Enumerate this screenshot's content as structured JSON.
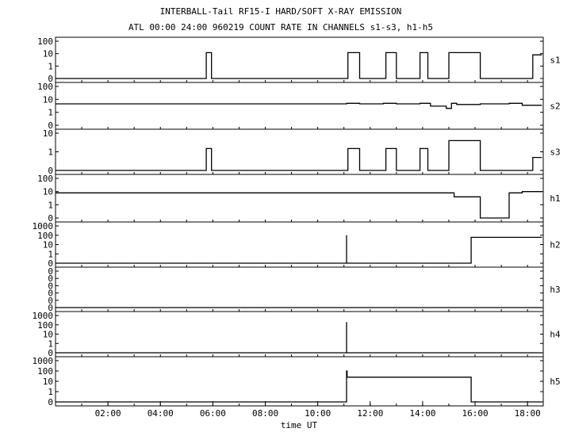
{
  "chart_data": {
    "type": "line",
    "title": "INTERBALL-Tail RF15-I HARD/SOFT X-RAY EMISSION",
    "subtitle": "ATL 00:00 24:00 960219  COUNT RATE IN CHANNELS s1-s3, h1-h5",
    "xlabel": "time UT",
    "xlim": [
      0,
      18.6
    ],
    "x_ticks": [
      2,
      4,
      6,
      8,
      10,
      12,
      14,
      16,
      18
    ],
    "x_tick_labels": [
      "02:00",
      "04:00",
      "06:00",
      "08:00",
      "10:00",
      "12:00",
      "14:00",
      "16:00",
      "18:00"
    ],
    "y_scale": "log",
    "grid": false,
    "panels": [
      {
        "name": "s1",
        "y_tick_labels": [
          "100",
          "10",
          "1",
          "0"
        ],
        "series": {
          "x": [
            0,
            5.75,
            5.75,
            5.95,
            5.95,
            11.15,
            11.15,
            11.6,
            11.6,
            12.6,
            12.6,
            13.0,
            13.0,
            13.9,
            13.9,
            14.2,
            14.2,
            15.0,
            15.0,
            16.2,
            16.2,
            18.2,
            18.2,
            18.55
          ],
          "y": [
            0,
            0,
            12,
            12,
            0,
            0,
            12,
            12,
            0,
            0,
            12,
            12,
            0,
            0,
            12,
            12,
            0,
            0,
            12,
            12,
            0,
            0,
            8,
            8
          ]
        }
      },
      {
        "name": "s2",
        "y_tick_labels": [
          "100",
          "10",
          "1",
          "0"
        ],
        "series": {
          "x": [
            0,
            11.1,
            11.1,
            11.6,
            11.6,
            12.5,
            12.5,
            13.0,
            13.0,
            13.9,
            13.9,
            14.3,
            14.3,
            14.9,
            14.9,
            15.1,
            15.1,
            15.3,
            15.3,
            16.2,
            16.2,
            17.3,
            17.3,
            17.8,
            17.8,
            18.55
          ],
          "y": [
            4.5,
            4.5,
            5,
            5,
            4.5,
            4.5,
            5,
            5,
            4.5,
            4.5,
            5,
            5,
            3,
            3,
            2,
            2,
            5,
            5,
            4,
            4,
            4.5,
            4.5,
            5,
            5,
            3.5,
            3.5
          ]
        }
      },
      {
        "name": "s3",
        "y_tick_labels": [
          "10",
          "1",
          "0"
        ],
        "series": {
          "x": [
            0,
            5.75,
            5.75,
            5.95,
            5.95,
            11.15,
            11.15,
            11.6,
            11.6,
            12.6,
            12.6,
            13.0,
            13.0,
            13.9,
            13.9,
            14.2,
            14.2,
            15.0,
            15.0,
            16.2,
            16.2,
            18.2,
            18.2,
            18.55
          ],
          "y": [
            0,
            0,
            1.5,
            1.5,
            0,
            0,
            1.5,
            1.5,
            0,
            0,
            1.5,
            1.5,
            0,
            0,
            1.5,
            1.5,
            0,
            0,
            4,
            4,
            0,
            0,
            0.5,
            0.5
          ]
        }
      },
      {
        "name": "h1",
        "y_tick_labels": [
          "100",
          "10",
          "1",
          "0"
        ],
        "series": {
          "x": [
            0,
            15.2,
            15.2,
            16.2,
            16.2,
            17.3,
            17.3,
            17.8,
            17.8,
            18.55
          ],
          "y": [
            8,
            8,
            4,
            4,
            0,
            0,
            8,
            8,
            10,
            10
          ]
        }
      },
      {
        "name": "h2",
        "y_tick_labels": [
          "1000",
          "100",
          "10",
          "1",
          "0"
        ],
        "series": {
          "x": [
            0,
            11.1,
            11.1,
            11.1,
            15.85,
            15.85,
            18.55
          ],
          "y": [
            0,
            0,
            100,
            0,
            0,
            60,
            60
          ]
        }
      },
      {
        "name": "h3",
        "y_tick_labels": [
          "0",
          "0",
          "0",
          "0",
          "0",
          "0"
        ],
        "series": {
          "x": [
            0,
            18.55
          ],
          "y": [
            0,
            0
          ]
        }
      },
      {
        "name": "h4",
        "y_tick_labels": [
          "1000",
          "100",
          "10",
          "1",
          "0"
        ],
        "series": {
          "x": [
            0,
            11.1,
            11.1,
            11.1,
            18.55
          ],
          "y": [
            0,
            0,
            200,
            0,
            0
          ]
        }
      },
      {
        "name": "h5",
        "y_tick_labels": [
          "1000",
          "100",
          "10",
          "1",
          "0"
        ],
        "series": {
          "x": [
            0,
            11.1,
            11.1,
            11.12,
            11.12,
            15.85,
            15.85,
            18.55
          ],
          "y": [
            0,
            0,
            100,
            100,
            25,
            25,
            0,
            0
          ]
        }
      }
    ]
  }
}
